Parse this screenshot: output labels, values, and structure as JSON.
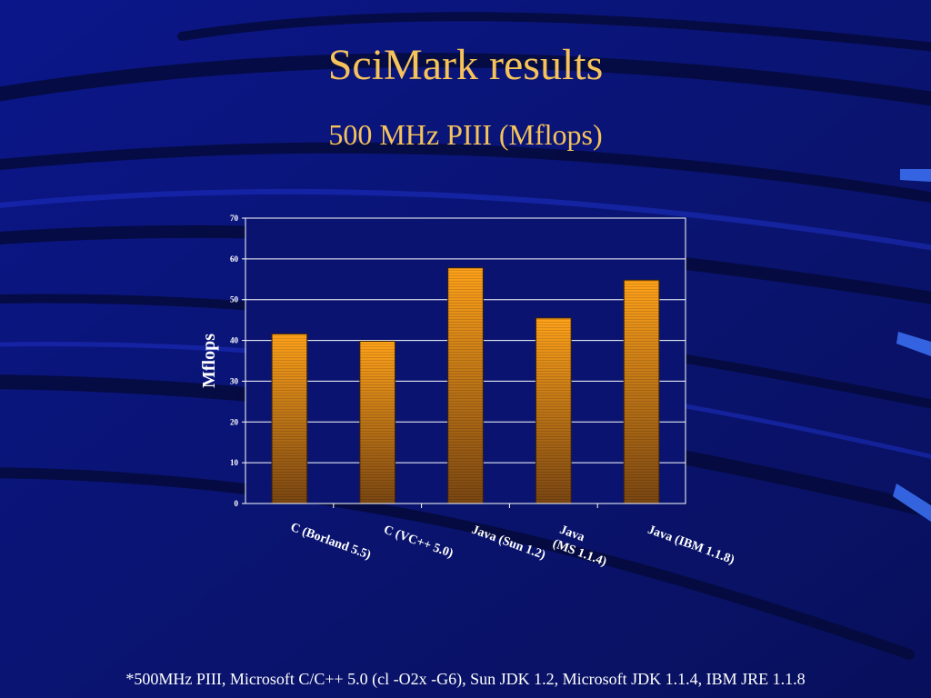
{
  "slide": {
    "title": "SciMark results",
    "subtitle": "500 MHz PIII  (Mflops)",
    "footnote": "*500MHz PIII, Microsoft C/C++ 5.0  (cl -O2x -G6),  Sun JDK 1.2,  Microsoft JDK 1.1.4,  IBM JRE 1.1.8"
  },
  "colors": {
    "background": "#0a1470",
    "title": "#f5c35a",
    "bar_top": "#ffa21a",
    "bar_bottom": "#7a4612",
    "bar_stroke": "#3a2006",
    "plot_background": "#0a1470",
    "gridline": "#ffffff",
    "text": "#ffffff"
  },
  "chart_data": {
    "type": "bar",
    "title": "",
    "xlabel": "",
    "ylabel": "Mflops",
    "ylim": [
      0,
      70
    ],
    "yticks": [
      0,
      10,
      20,
      30,
      40,
      50,
      60,
      70
    ],
    "ytick_labels": [
      "0",
      "10",
      "20",
      "30",
      "40",
      "50",
      "60",
      "70"
    ],
    "grid": true,
    "legend": false,
    "categories": [
      {
        "line1": "",
        "line2": "C (Borland 5.5)"
      },
      {
        "line1": "C (VC++ 5.0)",
        "line2": ""
      },
      {
        "line1": "Java (Sun 1.2)",
        "line2": ""
      },
      {
        "line1": "Java",
        "line2": "(MS 1.1.4)"
      },
      {
        "line1": "Java (IBM 1.1.8)",
        "line2": ""
      }
    ],
    "values": [
      41.6,
      39.8,
      57.8,
      45.5,
      54.8
    ]
  }
}
